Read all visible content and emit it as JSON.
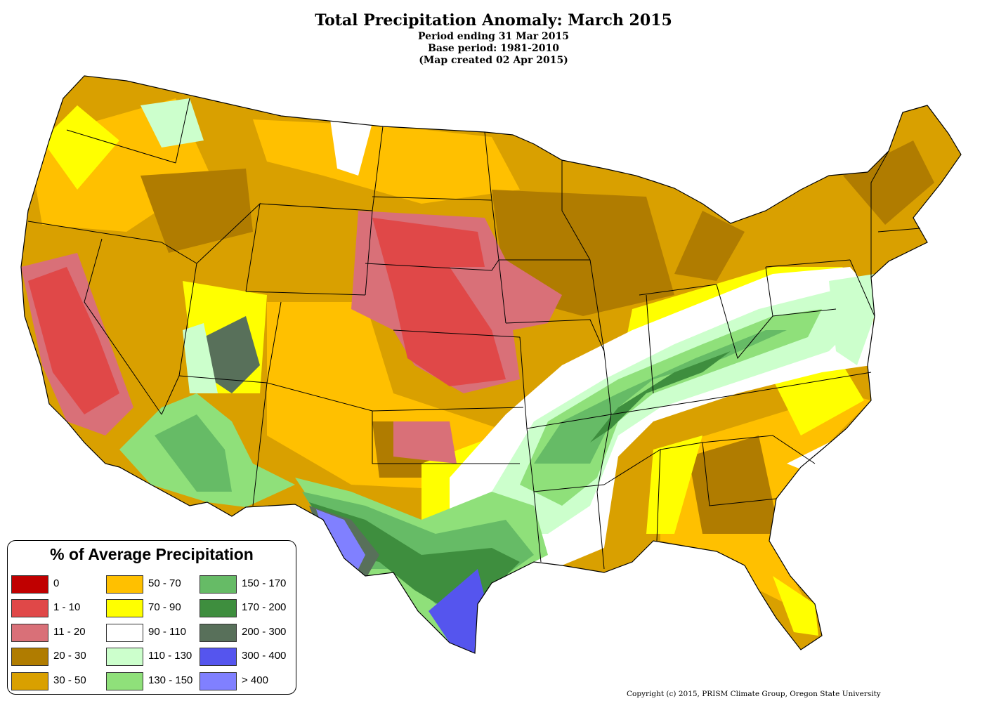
{
  "header": {
    "title": "Total Precipitation Anomaly: March 2015",
    "line1": "Period ending 31 Mar 2015",
    "line2": "Base period: 1981-2010",
    "line3": "(Map created 02 Apr 2015)"
  },
  "legend": {
    "title": "% of Average Precipitation",
    "items": [
      {
        "label": "0",
        "color": "#c00000"
      },
      {
        "label": "1 - 10",
        "color": "#e04848"
      },
      {
        "label": "11 - 20",
        "color": "#d97078"
      },
      {
        "label": "20 - 30",
        "color": "#b07c00"
      },
      {
        "label": "30 - 50",
        "color": "#d9a000"
      },
      {
        "label": "50 - 70",
        "color": "#ffc000"
      },
      {
        "label": "70 - 90",
        "color": "#ffff00"
      },
      {
        "label": "90 - 110",
        "color": "#ffffff"
      },
      {
        "label": "110 - 130",
        "color": "#ccffcc"
      },
      {
        "label": "130 - 150",
        "color": "#8fe07a"
      },
      {
        "label": "150 - 170",
        "color": "#66bb66"
      },
      {
        "label": "170 - 200",
        "color": "#3e8e3e"
      },
      {
        "label": "200 - 300",
        "color": "#58705a"
      },
      {
        "label": "300 - 400",
        "color": "#5555ee"
      },
      {
        "label": "> 400",
        "color": "#8080ff"
      }
    ]
  },
  "copyright": "Copyright (c) 2015, PRISM Climate Group, Oregon State University"
}
